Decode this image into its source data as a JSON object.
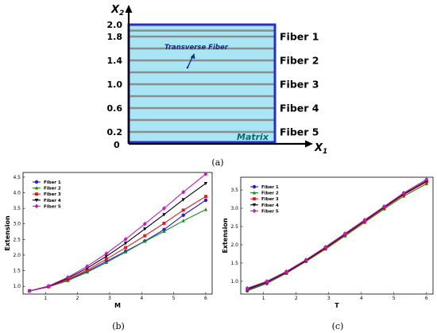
{
  "diagram": {
    "axis_y_label": "X",
    "axis_y_sub": "2",
    "axis_x_label": "X",
    "axis_x_sub": "1",
    "origin": "0",
    "ticks": [
      {
        "label": "2.0",
        "value": 2.0
      },
      {
        "label": "1.8",
        "value": 1.8
      },
      {
        "label": "1.4",
        "value": 1.4
      },
      {
        "label": "1.0",
        "value": 1.0
      },
      {
        "label": "0.6",
        "value": 0.6
      },
      {
        "label": "0.2",
        "value": 0.2
      }
    ],
    "fiber_lines": [
      1.9,
      1.8,
      1.6,
      1.4,
      1.2,
      1.0,
      0.8,
      0.6,
      0.4,
      0.2
    ],
    "fiber_labels": [
      {
        "label": "Fiber 1",
        "value": 1.8
      },
      {
        "label": "Fiber 2",
        "value": 1.4
      },
      {
        "label": "Fiber 3",
        "value": 1.0
      },
      {
        "label": "Fiber 4",
        "value": 0.6
      },
      {
        "label": "Fiber 5",
        "value": 0.2
      }
    ],
    "transverse_label": "Transverse Fiber",
    "matrix_label": "Matrix",
    "caption": "(a)",
    "colors": {
      "fill": "#a9e6f5",
      "border": "#2b2bd6",
      "fiber": "#8c8c8c",
      "text_blue": "#1b2a8a",
      "matrix_text": "#0b6b6b"
    }
  },
  "chart_data": [
    {
      "type": "line",
      "caption": "(b)",
      "xlabel": "M",
      "ylabel": "Extension",
      "xlim": [
        0.3,
        6.2
      ],
      "ylim": [
        0.75,
        4.65
      ],
      "xticks": [
        1,
        2,
        3,
        4,
        5,
        6
      ],
      "yticks": [
        1.0,
        1.5,
        2.0,
        2.5,
        3.0,
        3.5,
        4.0,
        4.5
      ],
      "ytick_labels": [
        "1.0",
        "1.5",
        "2.0",
        "2.5",
        "3.0",
        "3.5",
        "4.0",
        "4.5"
      ],
      "legend_position": "top-left",
      "grid": false,
      "x": [
        0.5,
        1.1,
        1.7,
        2.3,
        2.9,
        3.5,
        4.1,
        4.7,
        5.3,
        6.0
      ],
      "series": [
        {
          "name": "Fiber 1",
          "color": "#1f1fd6",
          "marker": "circle",
          "values": [
            0.85,
            0.99,
            1.2,
            1.48,
            1.8,
            2.12,
            2.45,
            2.82,
            3.28,
            3.76
          ]
        },
        {
          "name": "Fiber 2",
          "color": "#1a8a1a",
          "marker": "triangle",
          "values": [
            0.85,
            0.98,
            1.18,
            1.45,
            1.76,
            2.1,
            2.44,
            2.76,
            3.1,
            3.46
          ]
        },
        {
          "name": "Fiber 3",
          "color": "#e31a1a",
          "marker": "square",
          "values": [
            0.85,
            0.99,
            1.22,
            1.52,
            1.87,
            2.24,
            2.62,
            3.02,
            3.44,
            3.88
          ]
        },
        {
          "name": "Fiber 4",
          "color": "#000000",
          "marker": "triangle-down",
          "values": [
            0.85,
            1.0,
            1.26,
            1.58,
            1.96,
            2.38,
            2.84,
            3.3,
            3.78,
            4.3
          ]
        },
        {
          "name": "Fiber 5",
          "color": "#c21bc2",
          "marker": "diamond",
          "values": [
            0.85,
            1.01,
            1.29,
            1.64,
            2.05,
            2.51,
            3.0,
            3.5,
            4.02,
            4.6
          ]
        }
      ]
    },
    {
      "type": "line",
      "caption": "(c)",
      "xlabel": "T",
      "ylabel": "Extension",
      "xlim": [
        0.3,
        6.2
      ],
      "ylim": [
        0.65,
        3.85
      ],
      "xticks": [
        1,
        2,
        3,
        4,
        5,
        6
      ],
      "yticks": [
        1.0,
        1.5,
        2.0,
        2.5,
        3.0,
        3.5
      ],
      "ytick_labels": [
        "1.0",
        "1.5",
        "2.0",
        "2.5",
        "3.0",
        "3.5"
      ],
      "legend_position": "top-left",
      "grid": false,
      "x": [
        0.5,
        1.1,
        1.7,
        2.3,
        2.9,
        3.5,
        4.1,
        4.7,
        5.3,
        6.0
      ],
      "series": [
        {
          "name": "Fiber 1",
          "color": "#1f1fd6",
          "marker": "circle",
          "values": [
            0.74,
            0.94,
            1.22,
            1.55,
            1.9,
            2.27,
            2.64,
            3.02,
            3.38,
            3.74
          ]
        },
        {
          "name": "Fiber 2",
          "color": "#1a8a1a",
          "marker": "triangle",
          "values": [
            0.76,
            0.95,
            1.22,
            1.54,
            1.88,
            2.24,
            2.61,
            2.98,
            3.33,
            3.67
          ]
        },
        {
          "name": "Fiber 3",
          "color": "#e31a1a",
          "marker": "square",
          "values": [
            0.78,
            0.97,
            1.24,
            1.56,
            1.9,
            2.27,
            2.64,
            3.01,
            3.37,
            3.72
          ]
        },
        {
          "name": "Fiber 4",
          "color": "#000000",
          "marker": "triangle-down",
          "values": [
            0.79,
            0.98,
            1.25,
            1.57,
            1.92,
            2.29,
            2.66,
            3.03,
            3.39,
            3.75
          ]
        },
        {
          "name": "Fiber 5",
          "color": "#c21bc2",
          "marker": "diamond",
          "values": [
            0.81,
            1.0,
            1.27,
            1.59,
            1.94,
            2.31,
            2.68,
            3.05,
            3.42,
            3.79
          ]
        }
      ]
    }
  ]
}
